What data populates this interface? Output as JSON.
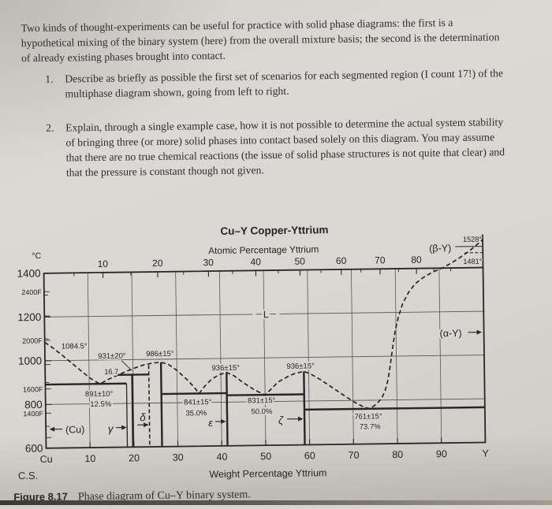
{
  "page": {
    "intro": "Two kinds of thought-experiments can be useful for practice with solid phase diagrams: the first is a hypothetical mixing of the binary system (here) from the overall mixture basis; the second is the determination of already existing phases brought into contact.",
    "items": [
      {
        "number": "1.",
        "text": "Describe as briefly as possible the first set of scenarios for each segmented region (I count 17!) of the multiphase diagram shown, going from left to right."
      },
      {
        "number": "2.",
        "text": "Explain, through a single example case, how it is not possible to determine the actual system stability of bringing three (or more) solid phases into contact based solely on this diagram. You may assume that there are no true chemical reactions (the issue of solid phase structures is not quite that clear) and that the pressure is constant though not given."
      }
    ],
    "credit": "C.S.",
    "caption_label": "Figure 8.17",
    "caption_text": "Phase diagram of Cu–Y binary system."
  },
  "chart_data": {
    "type": "line",
    "title": "Cu–Y Copper-Yttrium",
    "axes": {
      "top": {
        "label": "Atomic Percentage Yttrium",
        "tick_labels": [
          10,
          20,
          30,
          40,
          50,
          60,
          70,
          80
        ],
        "minor_ticks_at": [
          5,
          15,
          25,
          35,
          45,
          55,
          65,
          75,
          85,
          90
        ]
      },
      "bottom": {
        "label": "Weight Percentage Yttrium",
        "tick_labels": [
          "Cu",
          "10",
          "20",
          "30",
          "40",
          "50",
          "60",
          "70",
          "80",
          "90",
          "Y"
        ]
      },
      "left": {
        "unit_label": "°C",
        "celsius_ticks": [
          1400,
          1200,
          1000,
          800,
          600
        ],
        "celsius_minor_ticks": [
          1300,
          1100,
          900,
          700
        ],
        "fahrenheit_labeled_ticks": [
          "2400F",
          "2000F",
          "1600F",
          "1400F"
        ],
        "fahrenheit_all_ticks_f": [
          2400,
          2200,
          2000,
          1800,
          1600,
          1400,
          1200
        ],
        "range_c": [
          600,
          1400
        ]
      }
    },
    "gridlines_c": [
      1200,
      1000,
      800
    ],
    "gridlines_wt": [
      10,
      20,
      30,
      40,
      50,
      60,
      70,
      80,
      90
    ],
    "liquidus_dashed_points_wt_c": [
      [
        0,
        1084.5
      ],
      [
        2,
        1056
      ],
      [
        4,
        1023
      ],
      [
        6,
        989
      ],
      [
        8,
        955
      ],
      [
        10,
        921
      ],
      [
        11.5,
        901
      ],
      [
        12.5,
        891
      ],
      [
        13.5,
        902
      ],
      [
        15,
        917
      ],
      [
        16.7,
        931
      ],
      [
        18.5,
        947
      ],
      [
        20.5,
        962
      ],
      [
        22.5,
        975
      ],
      [
        24.5,
        983
      ],
      [
        26.4,
        986
      ],
      [
        28,
        977
      ],
      [
        30,
        948
      ],
      [
        32,
        911
      ],
      [
        33.8,
        872
      ],
      [
        35,
        841
      ],
      [
        36.2,
        872
      ],
      [
        37.8,
        904
      ],
      [
        39.5,
        925
      ],
      [
        41.3,
        936
      ],
      [
        43,
        920
      ],
      [
        45,
        889
      ],
      [
        47.5,
        856
      ],
      [
        49,
        840
      ],
      [
        50,
        831
      ],
      [
        51.2,
        853
      ],
      [
        53,
        889
      ],
      [
        55.5,
        916
      ],
      [
        57,
        928
      ],
      [
        58.9,
        936
      ],
      [
        60.5,
        923
      ],
      [
        62.5,
        899
      ],
      [
        65,
        865
      ],
      [
        67.5,
        830
      ],
      [
        70,
        796
      ],
      [
        72,
        774
      ],
      [
        73.7,
        761
      ],
      [
        74.5,
        770
      ],
      [
        75.5,
        785
      ],
      [
        76.5,
        808
      ],
      [
        77.3,
        840
      ],
      [
        78,
        890
      ],
      [
        78.6,
        960
      ],
      [
        79.2,
        1040
      ],
      [
        79.8,
        1115
      ],
      [
        80.6,
        1180
      ],
      [
        81.6,
        1240
      ],
      [
        83,
        1292
      ],
      [
        84.5,
        1330
      ],
      [
        86.5,
        1360
      ],
      [
        88.5,
        1382
      ],
      [
        91,
        1403
      ],
      [
        93,
        1425
      ],
      [
        95,
        1450
      ],
      [
        97,
        1478
      ],
      [
        98.5,
        1502
      ],
      [
        100,
        1528
      ]
    ],
    "isotherms": [
      {
        "label": "891±10°",
        "pct_label": "12.5%",
        "eutectic_wt": 12.5,
        "temp_c": 891,
        "from_wt": 0,
        "to_wt": 18.5
      },
      {
        "label": "931±20°",
        "pct_label": "16.7",
        "eutectic_wt": 16.7,
        "temp_c": 931,
        "from_wt": 16.1,
        "to_wt": 23.6
      },
      {
        "label": "841±15°",
        "pct_label": "35.0%",
        "eutectic_wt": 35.0,
        "temp_c": 841,
        "from_wt": 26.4,
        "to_wt": 41.3
      },
      {
        "label": "831±15°",
        "pct_label": "50.0%",
        "eutectic_wt": 50.0,
        "temp_c": 831,
        "from_wt": 41.3,
        "to_wt": 58.9
      },
      {
        "label": "761±15°",
        "pct_label": "73.7%",
        "eutectic_wt": 73.7,
        "temp_c": 761,
        "from_wt": 58.9,
        "to_wt": 100
      }
    ],
    "compound_lines": [
      {
        "name": "gamma-left-boundary",
        "wt": 18.5,
        "top_c": 891,
        "style": "solid",
        "width": 1.3
      },
      {
        "name": "gamma",
        "wt": 19.8,
        "top_c": 931,
        "style": "solid",
        "width": 2.4
      },
      {
        "name": "delta",
        "wt": 23.6,
        "top_c": 974,
        "style": "dashed",
        "width": 1.6
      },
      {
        "name": "congruent-compound",
        "wt": 26.4,
        "top_c": 986,
        "style": "solid",
        "width": 2.4
      },
      {
        "name": "epsilon",
        "wt": 41.3,
        "top_c": 936,
        "style": "solid",
        "width": 2.4
      },
      {
        "name": "zeta",
        "wt": 58.9,
        "top_c": 936,
        "style": "solid",
        "width": 2.4
      }
    ],
    "labels": {
      "cu_melting": "1084.5°",
      "p1_temp": "931±20°",
      "p1_pct": "16.7",
      "c1_temp": "986±15°",
      "e1_temp": "891±10°",
      "e1_pct": "12.5%",
      "e2_temp": "841±15°",
      "e2_pct": "35.0%",
      "p2_temp": "936±15°",
      "e3_temp": "831±15°",
      "e3_pct": "50.0%",
      "p3_temp": "936±15°",
      "e4_temp": "761±15°",
      "e4_pct": "73.7%",
      "y_melt": "1528°",
      "y_trans": "1481°",
      "liquid": "L",
      "cu_phase": "(Cu)",
      "gamma": "γ",
      "delta": "δ",
      "epsilon": "ε",
      "zeta": "ζ",
      "alpha_y": "(α-Y)",
      "beta_y": "(β-Y)"
    }
  }
}
